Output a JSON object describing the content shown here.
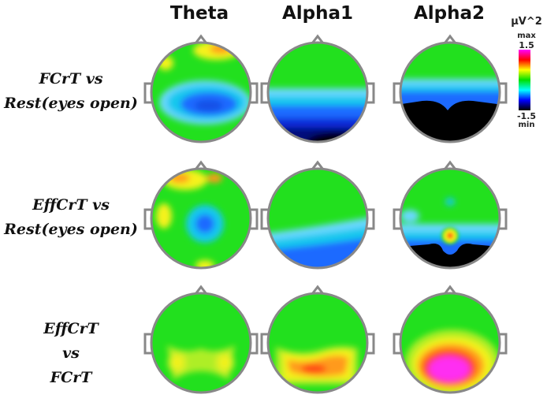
{
  "columns": [
    "Theta",
    "Alpha1",
    "Alpha2"
  ],
  "rows": [
    {
      "lines": [
        "FCrT  vs",
        "Rest(eyes open)"
      ]
    },
    {
      "lines": [
        "EffCrT vs",
        "Rest(eyes open)"
      ]
    },
    {
      "lines": [
        "EffCrT",
        "vs",
        "FCrT"
      ]
    }
  ],
  "colorbar": {
    "unit": "µV^2",
    "max_label": "max",
    "max_value": "1.5",
    "min_value": "-1.5",
    "min_label": "min",
    "colors": [
      "#ff00ff",
      "#ff0000",
      "#ffff00",
      "#00e000",
      "#00ffff",
      "#0000ff",
      "#000000"
    ]
  },
  "palette": {
    "green": "#22e01e",
    "yellow": "#f5f21a",
    "orange": "#ff9a1a",
    "red": "#ff3a14",
    "magenta": "#ff2ef2",
    "lightblue": "#6ad8ff",
    "cyan": "#14c8ee",
    "blue": "#1e6aff",
    "navy": "#04107a",
    "black": "#000000",
    "outline": "#888888"
  }
}
